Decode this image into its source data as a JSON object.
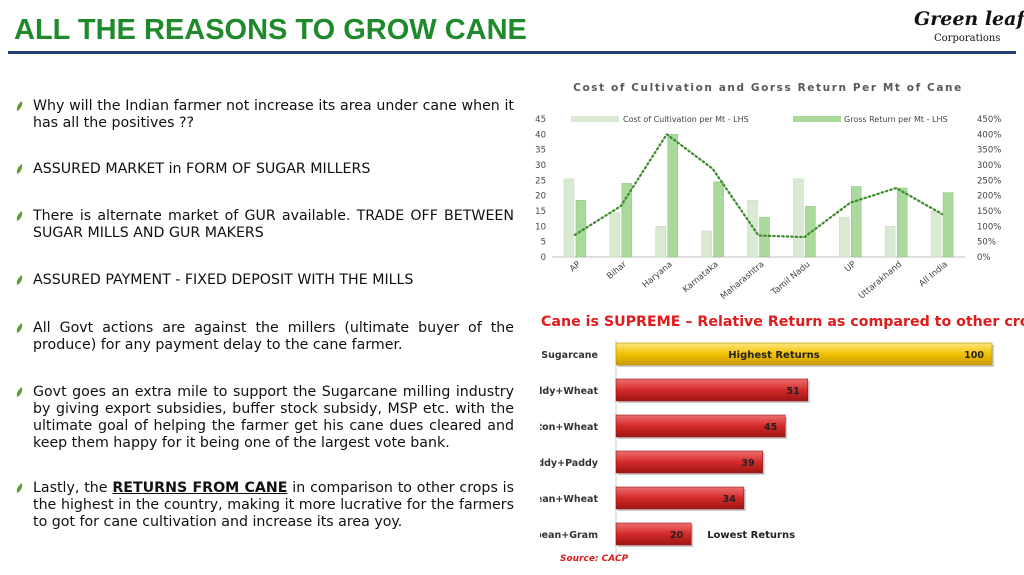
{
  "title": "ALL THE REASONS TO GROW CANE",
  "logo": {
    "main": "Green leaf",
    "sub": "Corporations"
  },
  "bullets": [
    {
      "text": "Why will the Indian farmer not increase its area under cane when it has all the positives ??"
    },
    {
      "text": "ASSURED MARKET in FORM OF SUGAR MILLERS"
    },
    {
      "text": "There is alternate market of GUR available. TRADE OFF BETWEEN SUGAR MILLS AND GUR MAKERS"
    },
    {
      "text": "ASSURED PAYMENT - FIXED DEPOSIT WITH THE MILLS"
    },
    {
      "text": "All Govt actions are against the millers (ultimate buyer of the produce) for any payment delay to the cane farmer."
    },
    {
      "text": "Govt goes an extra mile to support the Sugarcane milling industry by giving export subsidies, buffer stock subsidy, MSP etc. with the ultimate goal of helping the farmer get his cane dues cleared and keep them happy for it being one of the largest vote bank."
    },
    {
      "prefix": "Lastly, the ",
      "emphasis": "RETURNS FROM CANE",
      "suffix": " in comparison to other crops is the highest in the country, making it more lucrative for the farmers to got for cane cultivation and increase its area yoy."
    }
  ],
  "chart2_title": "Cane is SUPREME – Relative Return as compared to other crops",
  "source": "Source: CACP",
  "colors": {
    "title_green": "#1f8a2b",
    "rule_blue": "#21427a",
    "red_text": "#e01b1b",
    "bar_light": "#d8ead2",
    "bar_green": "#a9d99b",
    "line_green": "#3d8b2c",
    "gold": "#f2c200",
    "red_bar": "#d42a2a"
  },
  "chart_data": [
    {
      "type": "bar",
      "title": "Cost of Cultivation and Gorss Return Per Mt of Cane",
      "categories": [
        "AP",
        "Bihar",
        "Haryana",
        "Karnataka",
        "Maharashtra",
        "Tamil Nadu",
        "UP",
        "Uttarakhand",
        "All India"
      ],
      "series": [
        {
          "name": "Cost of Cultivation per Mt - LHS",
          "axis": "left",
          "values": [
            25.5,
            14.5,
            10,
            8.5,
            18.5,
            25.5,
            13,
            10,
            15
          ]
        },
        {
          "name": "Gross Return per Mt - LHS",
          "axis": "left",
          "values": [
            18.5,
            24,
            40,
            24.5,
            13,
            16.5,
            23,
            22.5,
            21
          ]
        },
        {
          "axis": "right",
          "type": "line",
          "style": "dotted",
          "values": [
            0.72,
            1.66,
            4.0,
            2.88,
            0.7,
            0.65,
            1.77,
            2.25,
            1.4
          ]
        }
      ],
      "left_ticks": [
        "0",
        "5",
        "10",
        "15",
        "20",
        "25",
        "30",
        "35",
        "40",
        "45"
      ],
      "right_ticks": [
        "0%",
        "50%",
        "100%",
        "150%",
        "200%",
        "250%",
        "300%",
        "350%",
        "400%",
        "450%"
      ],
      "ylim_left": [
        0,
        45
      ],
      "ylim_right": [
        0,
        4.5
      ],
      "legend_position": "top"
    },
    {
      "type": "bar",
      "orientation": "horizontal",
      "categories": [
        "Sugarcane",
        "Paddy+Wheat",
        "Cotton+Wheat",
        "Paddy+Paddy",
        "Soybean+Wheat",
        "Soybean+Gram"
      ],
      "values": [
        100,
        51,
        45,
        39,
        34,
        20
      ],
      "labels": [
        "100",
        "51",
        "45",
        "39",
        "34",
        "20"
      ],
      "annotations": {
        "top": "Highest Returns",
        "bottom": "Lowest Returns"
      },
      "xlim": [
        0,
        100
      ]
    }
  ]
}
